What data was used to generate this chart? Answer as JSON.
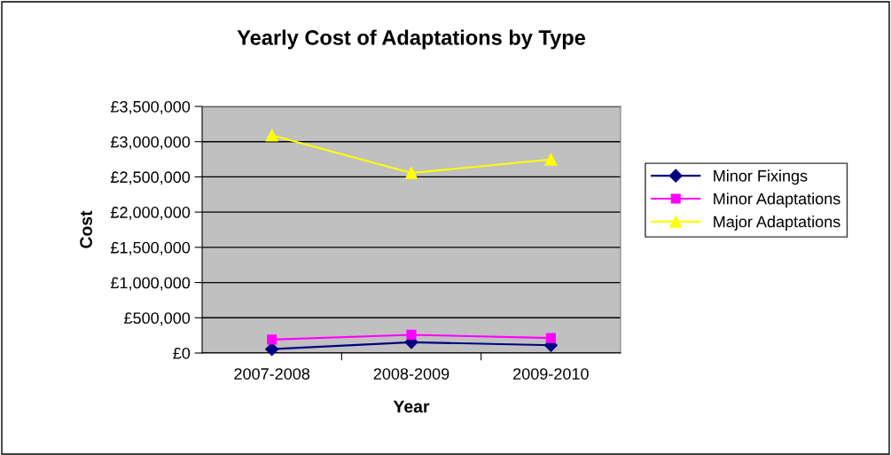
{
  "chart_data": {
    "type": "line",
    "title": "Yearly Cost of Adaptations by Type",
    "xlabel": "Year",
    "ylabel": "Cost",
    "categories": [
      "2007-2008",
      "2008-2009",
      "2009-2010"
    ],
    "series": [
      {
        "name": "Minor Fixings",
        "color": "#000080",
        "marker": "diamond",
        "values": [
          55000,
          153000,
          110000
        ]
      },
      {
        "name": "Minor Adaptations",
        "color": "#ff00ff",
        "marker": "square",
        "values": [
          191000,
          259000,
          213000
        ]
      },
      {
        "name": "Major Adaptations",
        "color": "#ffff00",
        "marker": "triangle",
        "values": [
          3090000,
          2555000,
          2747000
        ]
      }
    ],
    "ylim": [
      0,
      3500000
    ],
    "yticks": [
      {
        "value": 0,
        "label": "£0"
      },
      {
        "value": 500000,
        "label": "£500,000"
      },
      {
        "value": 1000000,
        "label": "£1,000,000"
      },
      {
        "value": 1500000,
        "label": "£1,500,000"
      },
      {
        "value": 2000000,
        "label": "£2,000,000"
      },
      {
        "value": 2500000,
        "label": "£2,500,000"
      },
      {
        "value": 3000000,
        "label": "£3,000,000"
      },
      {
        "value": 3500000,
        "label": "£3,500,000"
      }
    ],
    "grid": "y",
    "legend": "right"
  }
}
